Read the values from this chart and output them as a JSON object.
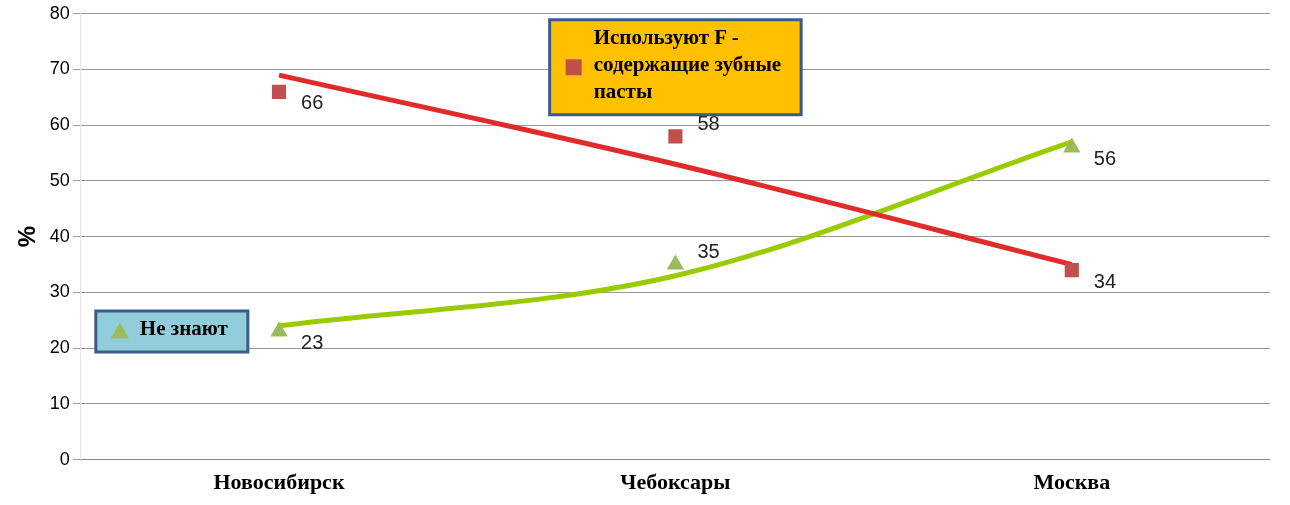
{
  "chart_data": {
    "type": "line",
    "ylabel": "%",
    "categories": [
      "Новосибирск",
      "Чебоксары",
      "Москва"
    ],
    "ylim": [
      0,
      80
    ],
    "yticks": [
      0,
      10,
      20,
      30,
      40,
      50,
      60,
      70,
      80
    ],
    "grid": "y",
    "legend": "left",
    "series": [
      {
        "name": "Используют F - содержащие зубные пасты",
        "type": "scatter",
        "marker": "square",
        "color": "#c0504d",
        "values": [
          66,
          58,
          34
        ],
        "value_labels": [
          "66",
          "58",
          "34"
        ]
      },
      {
        "name": "Не знают",
        "type": "scatter",
        "marker": "triangle",
        "color": "#9bbb59",
        "values": [
          23,
          35,
          56
        ],
        "value_labels": [
          "23",
          "35",
          "56"
        ]
      },
      {
        "type": "line",
        "marker": "none",
        "color": "#e02b2b",
        "values": [
          69,
          53,
          35
        ]
      },
      {
        "type": "line",
        "marker": "none",
        "color": "#99cc00",
        "values": [
          24,
          33,
          57
        ]
      }
    ]
  }
}
